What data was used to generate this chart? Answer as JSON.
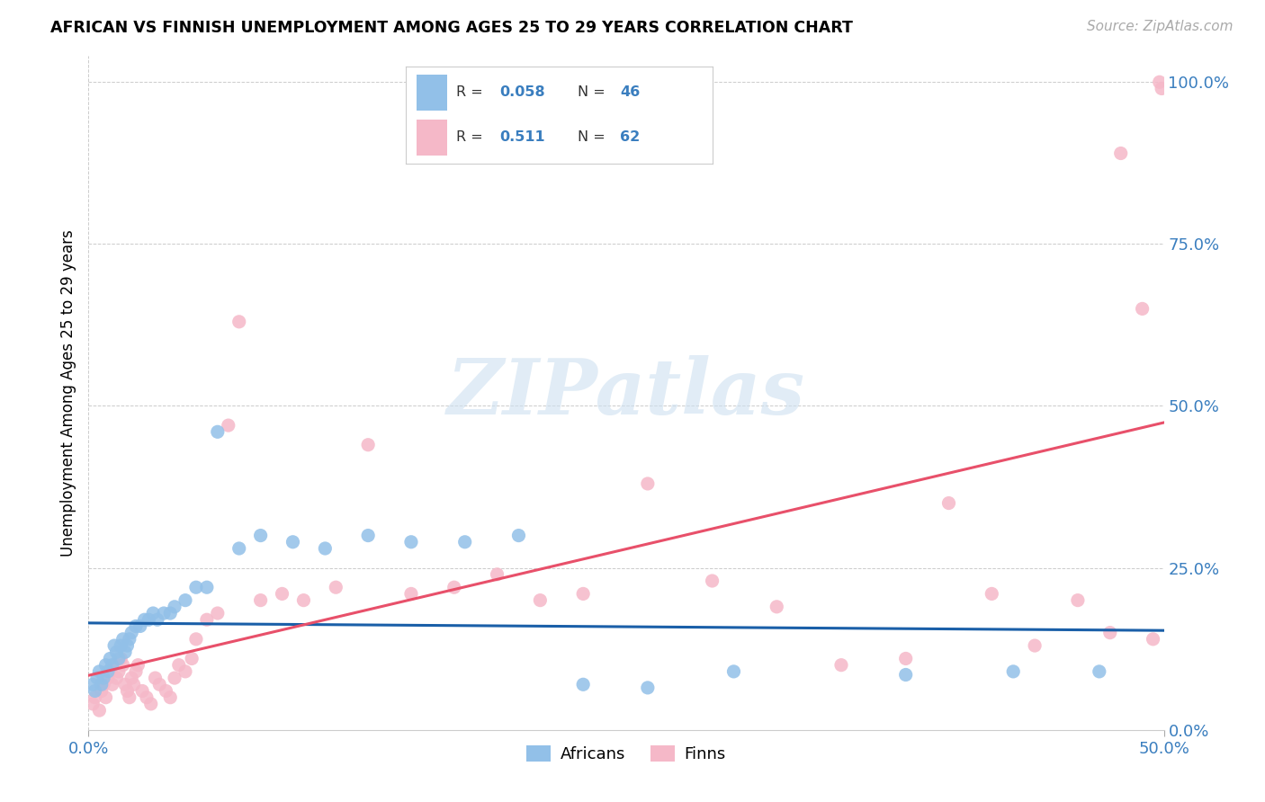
{
  "title": "AFRICAN VS FINNISH UNEMPLOYMENT AMONG AGES 25 TO 29 YEARS CORRELATION CHART",
  "source": "Source: ZipAtlas.com",
  "ylabel": "Unemployment Among Ages 25 to 29 years",
  "xlim": [
    0.0,
    0.5
  ],
  "ylim": [
    0.0,
    1.04
  ],
  "yticks": [
    0.0,
    0.25,
    0.5,
    0.75,
    1.0
  ],
  "ytick_labels": [
    "0.0%",
    "25.0%",
    "50.0%",
    "75.0%",
    "100.0%"
  ],
  "watermark": "ZIPatlas",
  "africans_color": "#92c0e8",
  "finns_color": "#f5b8c8",
  "africans_line_color": "#1a5fa8",
  "finns_line_color": "#e8506a",
  "background_color": "#ffffff",
  "africans_x": [
    0.002,
    0.003,
    0.004,
    0.005,
    0.006,
    0.007,
    0.008,
    0.009,
    0.01,
    0.011,
    0.012,
    0.013,
    0.014,
    0.015,
    0.016,
    0.017,
    0.018,
    0.019,
    0.02,
    0.022,
    0.024,
    0.026,
    0.028,
    0.03,
    0.032,
    0.035,
    0.038,
    0.04,
    0.045,
    0.05,
    0.055,
    0.06,
    0.07,
    0.08,
    0.095,
    0.11,
    0.13,
    0.15,
    0.175,
    0.2,
    0.23,
    0.26,
    0.3,
    0.38,
    0.43,
    0.47
  ],
  "africans_y": [
    0.07,
    0.06,
    0.08,
    0.09,
    0.07,
    0.08,
    0.1,
    0.09,
    0.11,
    0.1,
    0.13,
    0.12,
    0.11,
    0.13,
    0.14,
    0.12,
    0.13,
    0.14,
    0.15,
    0.16,
    0.16,
    0.17,
    0.17,
    0.18,
    0.17,
    0.18,
    0.18,
    0.19,
    0.2,
    0.22,
    0.22,
    0.46,
    0.28,
    0.3,
    0.29,
    0.28,
    0.3,
    0.29,
    0.29,
    0.3,
    0.07,
    0.065,
    0.09,
    0.085,
    0.09,
    0.09
  ],
  "finns_x": [
    0.002,
    0.003,
    0.005,
    0.006,
    0.007,
    0.008,
    0.009,
    0.01,
    0.011,
    0.012,
    0.013,
    0.014,
    0.015,
    0.016,
    0.017,
    0.018,
    0.019,
    0.02,
    0.021,
    0.022,
    0.023,
    0.025,
    0.027,
    0.029,
    0.031,
    0.033,
    0.036,
    0.038,
    0.04,
    0.042,
    0.045,
    0.048,
    0.05,
    0.055,
    0.06,
    0.065,
    0.07,
    0.08,
    0.09,
    0.1,
    0.115,
    0.13,
    0.15,
    0.17,
    0.19,
    0.21,
    0.23,
    0.26,
    0.29,
    0.32,
    0.35,
    0.38,
    0.4,
    0.42,
    0.44,
    0.46,
    0.475,
    0.48,
    0.49,
    0.495,
    0.498,
    0.499
  ],
  "finns_y": [
    0.04,
    0.05,
    0.03,
    0.06,
    0.07,
    0.05,
    0.08,
    0.09,
    0.07,
    0.1,
    0.08,
    0.09,
    0.11,
    0.1,
    0.07,
    0.06,
    0.05,
    0.08,
    0.07,
    0.09,
    0.1,
    0.06,
    0.05,
    0.04,
    0.08,
    0.07,
    0.06,
    0.05,
    0.08,
    0.1,
    0.09,
    0.11,
    0.14,
    0.17,
    0.18,
    0.47,
    0.63,
    0.2,
    0.21,
    0.2,
    0.22,
    0.44,
    0.21,
    0.22,
    0.24,
    0.2,
    0.21,
    0.38,
    0.23,
    0.19,
    0.1,
    0.11,
    0.35,
    0.21,
    0.13,
    0.2,
    0.15,
    0.89,
    0.65,
    0.14,
    1.0,
    0.99
  ]
}
